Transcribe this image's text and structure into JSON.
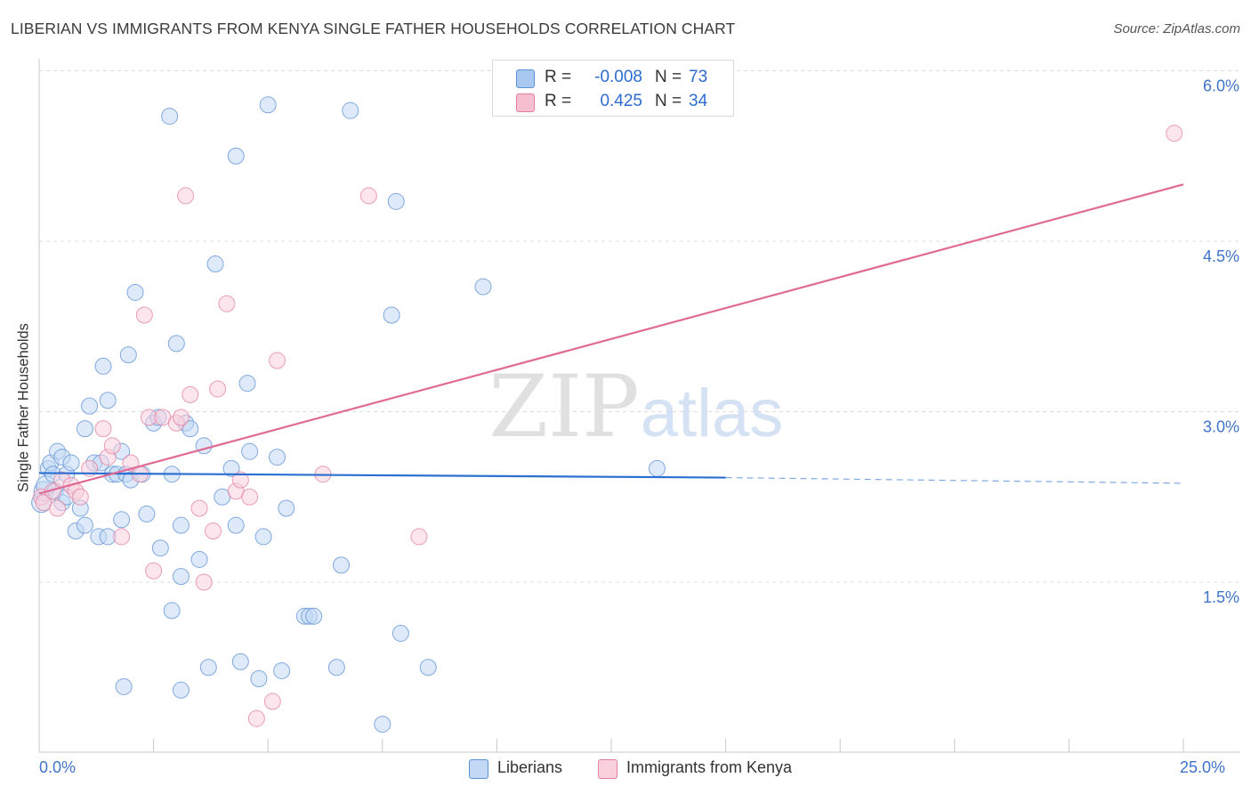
{
  "title": "LIBERIAN VS IMMIGRANTS FROM KENYA SINGLE FATHER HOUSEHOLDS CORRELATION CHART",
  "source": "Source: ZipAtlas.com",
  "watermark": {
    "zip": "ZIP",
    "atlas": "atlas"
  },
  "legend": {
    "rows": [
      {
        "r_label": "R =",
        "r_value": "-0.008",
        "n_label": "N =",
        "n_value": "73",
        "color": "#a9c8ef",
        "border": "#5b8fd6"
      },
      {
        "r_label": "R =",
        "r_value": "0.425",
        "n_label": "N =",
        "n_value": "34",
        "color": "#f6bfd0",
        "border": "#e27fa0"
      }
    ]
  },
  "bottom_legend": [
    {
      "label": "Liberians",
      "color": "#c3d8f4",
      "border": "#5b8fd6"
    },
    {
      "label": "Immigrants from Kenya",
      "color": "#f9d0dc",
      "border": "#e27fa0"
    }
  ],
  "chart_data": {
    "type": "scatter",
    "title": "LIBERIAN VS IMMIGRANTS FROM KENYA SINGLE FATHER HOUSEHOLDS CORRELATION CHART",
    "xlabel": "",
    "ylabel": "Single Father Households",
    "xlim": [
      0,
      25
    ],
    "ylim": [
      0,
      6.3
    ],
    "x_tick_labels": [
      "0.0%",
      "25.0%"
    ],
    "y_ticks": [
      1.5,
      3.0,
      4.5,
      6.0
    ],
    "y_tick_labels": [
      "1.5%",
      "3.0%",
      "4.5%",
      "6.0%"
    ],
    "x_minor_ticks": [
      0,
      2.5,
      5,
      7.5,
      10,
      12.5,
      15,
      17.5,
      20,
      22.5,
      25
    ],
    "grid": true,
    "series": [
      {
        "name": "Liberians",
        "color": "#5b8fd6",
        "fill": "#c3d8f4",
        "trend": {
          "x0": 0,
          "y0": 2.46,
          "x1": 15,
          "y1": 2.42,
          "dash_x1": 25,
          "dash_y1": 2.37,
          "color": "#2b6fd0"
        },
        "points": [
          [
            0.05,
            2.2
          ],
          [
            0.1,
            2.3
          ],
          [
            0.15,
            2.35
          ],
          [
            0.2,
            2.5
          ],
          [
            0.25,
            2.55
          ],
          [
            0.3,
            2.45
          ],
          [
            0.35,
            2.3
          ],
          [
            0.4,
            2.65
          ],
          [
            0.5,
            2.6
          ],
          [
            0.5,
            2.2
          ],
          [
            0.6,
            2.45
          ],
          [
            0.6,
            2.25
          ],
          [
            0.7,
            2.55
          ],
          [
            0.8,
            1.95
          ],
          [
            0.9,
            2.15
          ],
          [
            1.0,
            2.0
          ],
          [
            1.0,
            2.85
          ],
          [
            1.1,
            3.05
          ],
          [
            1.2,
            2.55
          ],
          [
            1.3,
            1.9
          ],
          [
            1.35,
            2.55
          ],
          [
            1.4,
            3.4
          ],
          [
            1.5,
            1.9
          ],
          [
            1.5,
            3.1
          ],
          [
            1.6,
            2.45
          ],
          [
            1.7,
            2.45
          ],
          [
            1.8,
            2.65
          ],
          [
            1.8,
            2.05
          ],
          [
            1.9,
            2.45
          ],
          [
            2.0,
            2.4
          ],
          [
            1.85,
            0.58
          ],
          [
            1.95,
            3.5
          ],
          [
            2.1,
            4.05
          ],
          [
            2.25,
            2.45
          ],
          [
            2.35,
            2.1
          ],
          [
            2.5,
            2.9
          ],
          [
            2.6,
            2.95
          ],
          [
            2.65,
            1.8
          ],
          [
            2.9,
            2.45
          ],
          [
            2.9,
            1.25
          ],
          [
            3.0,
            3.6
          ],
          [
            3.1,
            1.55
          ],
          [
            3.1,
            2.0
          ],
          [
            3.2,
            2.9
          ],
          [
            3.3,
            2.85
          ],
          [
            3.5,
            1.7
          ],
          [
            3.6,
            2.7
          ],
          [
            3.7,
            0.75
          ],
          [
            3.85,
            4.3
          ],
          [
            2.85,
            5.6
          ],
          [
            4.0,
            2.25
          ],
          [
            4.2,
            2.5
          ],
          [
            4.3,
            2.0
          ],
          [
            4.3,
            5.25
          ],
          [
            4.4,
            0.8
          ],
          [
            4.55,
            3.25
          ],
          [
            4.6,
            2.65
          ],
          [
            4.8,
            0.65
          ],
          [
            4.9,
            1.9
          ],
          [
            5.0,
            5.7
          ],
          [
            5.2,
            2.6
          ],
          [
            5.3,
            0.72
          ],
          [
            5.4,
            2.15
          ],
          [
            5.8,
            1.2
          ],
          [
            5.9,
            1.2
          ],
          [
            6.0,
            1.2
          ],
          [
            6.5,
            0.75
          ],
          [
            6.6,
            1.65
          ],
          [
            6.8,
            5.65
          ],
          [
            7.5,
            0.25
          ],
          [
            7.7,
            3.85
          ],
          [
            7.8,
            4.85
          ],
          [
            7.9,
            1.05
          ],
          [
            8.5,
            0.75
          ],
          [
            9.7,
            4.1
          ],
          [
            13.5,
            2.5
          ],
          [
            3.1,
            0.55
          ]
        ]
      },
      {
        "name": "Immigrants from Kenya",
        "color": "#e27fa0",
        "fill": "#f9d0dc",
        "trend": {
          "x0": 0,
          "y0": 2.28,
          "x1": 25,
          "y1": 5.0,
          "color": "#e06a94"
        },
        "points": [
          [
            0.05,
            2.25
          ],
          [
            0.1,
            2.2
          ],
          [
            0.3,
            2.3
          ],
          [
            0.4,
            2.15
          ],
          [
            0.5,
            2.4
          ],
          [
            0.7,
            2.35
          ],
          [
            0.8,
            2.3
          ],
          [
            0.9,
            2.25
          ],
          [
            1.1,
            2.5
          ],
          [
            1.4,
            2.85
          ],
          [
            1.5,
            2.6
          ],
          [
            1.6,
            2.7
          ],
          [
            1.8,
            1.9
          ],
          [
            2.0,
            2.55
          ],
          [
            2.2,
            2.45
          ],
          [
            2.3,
            3.85
          ],
          [
            2.4,
            2.95
          ],
          [
            2.5,
            1.6
          ],
          [
            2.7,
            2.95
          ],
          [
            3.0,
            2.9
          ],
          [
            3.1,
            2.95
          ],
          [
            3.3,
            3.15
          ],
          [
            3.5,
            2.15
          ],
          [
            3.6,
            1.5
          ],
          [
            3.8,
            1.95
          ],
          [
            3.9,
            3.2
          ],
          [
            4.1,
            3.95
          ],
          [
            4.3,
            2.3
          ],
          [
            4.4,
            2.4
          ],
          [
            4.6,
            2.25
          ],
          [
            4.75,
            0.3
          ],
          [
            5.1,
            0.45
          ],
          [
            5.2,
            3.45
          ],
          [
            6.2,
            2.45
          ],
          [
            7.2,
            4.9
          ],
          [
            8.3,
            1.9
          ],
          [
            3.2,
            4.9
          ],
          [
            24.8,
            5.45
          ]
        ]
      }
    ]
  }
}
